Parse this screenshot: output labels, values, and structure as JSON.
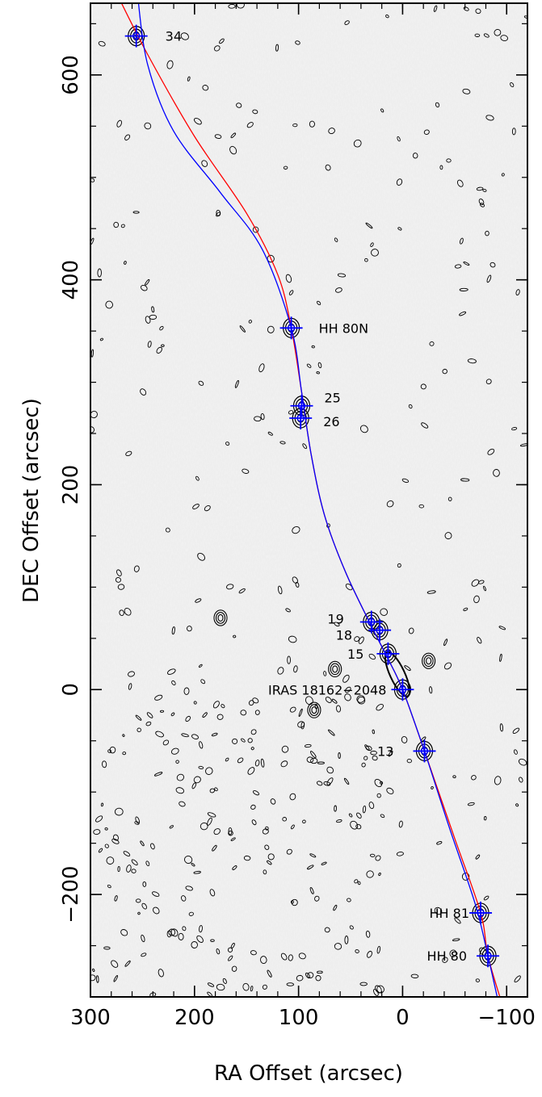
{
  "chart_data": {
    "type": "scatter",
    "title": "",
    "xlabel": "RA Offset (arcsec)",
    "ylabel": "DEC Offset (arcsec)",
    "xlim": [
      300,
      -120
    ],
    "ylim": [
      -300,
      670
    ],
    "x_axis_reversed": true,
    "x_ticks": [
      300,
      200,
      100,
      0,
      -100
    ],
    "x_tick_labels": [
      "300",
      "200",
      "100",
      "0",
      "−100"
    ],
    "y_ticks": [
      -200,
      0,
      200,
      400,
      600
    ],
    "y_tick_labels": [
      "−200",
      "0",
      "200",
      "400",
      "600"
    ],
    "grid": false,
    "background": "greyscale radio continuum map with black contours",
    "sources": [
      {
        "label": "34",
        "x": 256,
        "y": 638
      },
      {
        "label": "HH 80N",
        "x": 107,
        "y": 353
      },
      {
        "label": "25",
        "x": 97,
        "y": 277
      },
      {
        "label": "26",
        "x": 98,
        "y": 265
      },
      {
        "label": "19",
        "x": 30,
        "y": 66
      },
      {
        "label": "18",
        "x": 22,
        "y": 58
      },
      {
        "label": "15",
        "x": 14,
        "y": 35
      },
      {
        "label": "IRAS 18162−2048",
        "x": 0,
        "y": 0
      },
      {
        "label": "13",
        "x": -21,
        "y": -60
      },
      {
        "label": "HH 81",
        "x": -75,
        "y": -218
      },
      {
        "label": "HH 80",
        "x": -82,
        "y": -260
      }
    ],
    "series": [
      {
        "color": "#ff0000",
        "points": [
          [
            275,
            680
          ],
          [
            245,
            620
          ],
          [
            200,
            540
          ],
          [
            150,
            465
          ],
          [
            120,
            405
          ],
          [
            107,
            353
          ],
          [
            97,
            290
          ],
          [
            88,
            230
          ],
          [
            75,
            170
          ],
          [
            55,
            115
          ],
          [
            30,
            62
          ],
          [
            15,
            32
          ],
          [
            0,
            0
          ],
          [
            -21,
            -60
          ],
          [
            -50,
            -145
          ],
          [
            -75,
            -218
          ],
          [
            -82,
            -260
          ],
          [
            -95,
            -305
          ]
        ]
      },
      {
        "color": "#0000ff",
        "points": [
          [
            255,
            680
          ],
          [
            245,
            610
          ],
          [
            220,
            545
          ],
          [
            175,
            485
          ],
          [
            135,
            430
          ],
          [
            107,
            353
          ],
          [
            97,
            290
          ],
          [
            88,
            230
          ],
          [
            75,
            170
          ],
          [
            55,
            115
          ],
          [
            30,
            62
          ],
          [
            15,
            32
          ],
          [
            0,
            0
          ],
          [
            -21,
            -60
          ],
          [
            -45,
            -135
          ],
          [
            -70,
            -210
          ],
          [
            -82,
            -260
          ],
          [
            -92,
            -305
          ]
        ]
      }
    ],
    "colors": {
      "red_curve": "#ff0000",
      "blue_curve": "#0000ff",
      "marker": "#0000ff",
      "contour": "#000000",
      "background": "#ececec"
    }
  }
}
